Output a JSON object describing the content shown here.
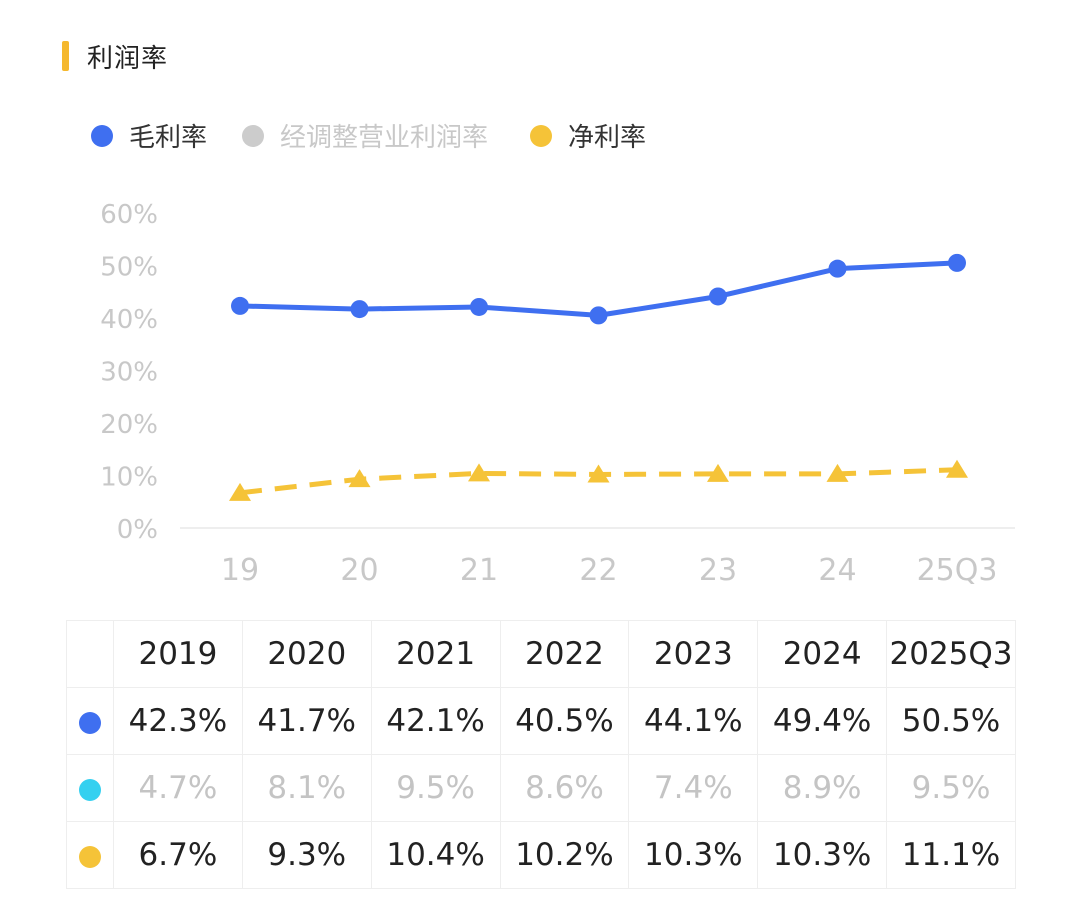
{
  "section": {
    "title": "利润率"
  },
  "colors": {
    "accent_bar": "#f5b82e",
    "gross": "#3f6ff0",
    "adjusted_legend": "#cccccc",
    "adjusted_table": "#34d0f0",
    "net": "#f5c338",
    "axis_text": "#c8c8c8",
    "gridline": "#eeeeee"
  },
  "chart_data": {
    "type": "line",
    "categories": [
      "19",
      "20",
      "21",
      "22",
      "23",
      "24",
      "25Q3"
    ],
    "ylim": [
      0,
      60
    ],
    "yticks": [
      "0%",
      "10%",
      "20%",
      "30%",
      "40%",
      "50%",
      "60%"
    ],
    "legend_position": "top-left",
    "series": [
      {
        "name": "毛利率",
        "marker": "circle",
        "style": "solid",
        "visible": true,
        "values": [
          42.3,
          41.7,
          42.1,
          40.5,
          44.1,
          49.4,
          50.5
        ]
      },
      {
        "name": "经调整营业利润率",
        "marker": "circle",
        "style": "solid",
        "visible": false,
        "values": [
          4.7,
          8.1,
          9.5,
          8.6,
          7.4,
          8.9,
          9.5
        ]
      },
      {
        "name": "净利率",
        "marker": "triangle",
        "style": "dashed",
        "visible": true,
        "values": [
          6.7,
          9.3,
          10.4,
          10.2,
          10.3,
          10.3,
          11.1
        ]
      }
    ]
  },
  "table": {
    "headers": [
      "2019",
      "2020",
      "2021",
      "2022",
      "2023",
      "2024",
      "2025Q3"
    ],
    "rows": [
      {
        "name": "gross-margin",
        "cells": [
          "42.3%",
          "41.7%",
          "42.1%",
          "40.5%",
          "44.1%",
          "49.4%",
          "50.5%"
        ]
      },
      {
        "name": "adjusted-operating-margin",
        "cells": [
          "4.7%",
          "8.1%",
          "9.5%",
          "8.6%",
          "7.4%",
          "8.9%",
          "9.5%"
        ]
      },
      {
        "name": "net-margin",
        "cells": [
          "6.7%",
          "9.3%",
          "10.4%",
          "10.2%",
          "10.3%",
          "10.3%",
          "11.1%"
        ]
      }
    ]
  }
}
